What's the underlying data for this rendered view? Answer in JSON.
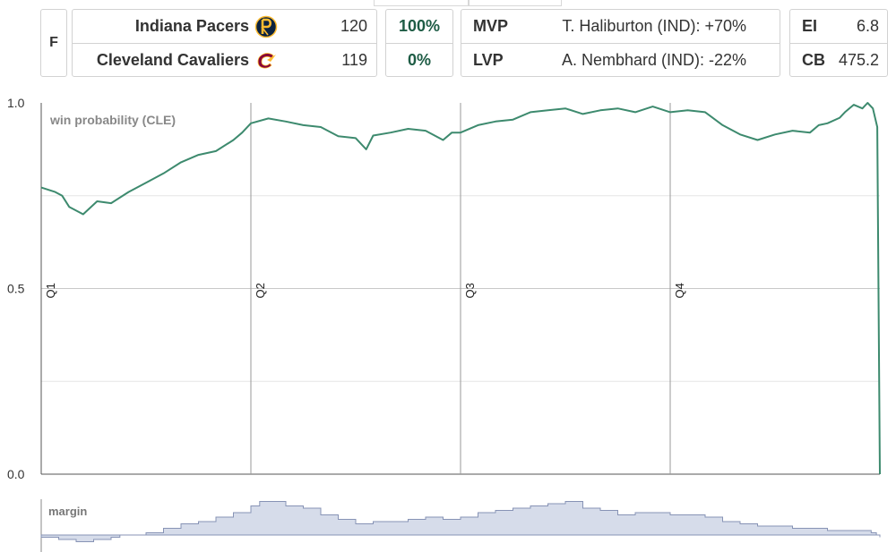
{
  "header": {
    "status": "F",
    "teams": [
      {
        "name": "Indiana Pacers",
        "score": "120",
        "win_pct": "100%",
        "logo_icon": "pacers-logo-icon",
        "logo_color": "#0c2340"
      },
      {
        "name": "Cleveland Cavaliers",
        "score": "119",
        "win_pct": "0%",
        "logo_icon": "cavaliers-logo-icon",
        "logo_color": "#860038"
      }
    ],
    "mvp": {
      "label": "MVP",
      "value": "T. Haliburton (IND): +70%"
    },
    "lvp": {
      "label": "LVP",
      "value": "A. Nembhard (IND): -22%"
    },
    "ei": {
      "label": "EI",
      "value": "6.8"
    },
    "cb": {
      "label": "CB",
      "value": "475.2"
    }
  },
  "chart_data": [
    {
      "type": "line",
      "title": "win probability (CLE)",
      "ylim": [
        0,
        1
      ],
      "y_ticks": [
        0.0,
        0.5,
        1.0
      ],
      "y_tick_labels": [
        "0.0",
        "0.5",
        "1.0"
      ],
      "xlim": [
        0,
        48
      ],
      "x_unit": "game minutes",
      "quarters": [
        {
          "label": "Q1",
          "start": 0
        },
        {
          "label": "Q2",
          "start": 12
        },
        {
          "label": "Q3",
          "start": 24
        },
        {
          "label": "Q4",
          "start": 36
        }
      ],
      "grid": true,
      "color": "#3d8a6e",
      "series": [
        {
          "x": [
            0,
            0.8,
            1.2,
            1.6,
            2.4,
            3.2,
            4,
            5,
            6,
            7,
            8,
            9,
            10,
            11,
            11.5,
            12,
            13,
            14,
            15,
            16,
            17,
            18,
            18.6,
            19,
            20,
            21,
            22,
            23,
            23.5,
            24,
            25,
            26,
            27,
            28,
            29,
            30,
            31,
            32,
            33,
            34,
            35,
            36,
            37,
            38,
            39,
            40,
            41,
            42,
            43,
            44,
            44.5,
            45,
            45.7,
            46,
            46.5,
            47,
            47.3,
            47.6,
            47.85,
            48
          ],
          "y": [
            0.772,
            0.76,
            0.75,
            0.72,
            0.7,
            0.735,
            0.73,
            0.76,
            0.785,
            0.81,
            0.84,
            0.86,
            0.87,
            0.9,
            0.92,
            0.945,
            0.958,
            0.95,
            0.94,
            0.935,
            0.91,
            0.905,
            0.875,
            0.912,
            0.92,
            0.93,
            0.925,
            0.9,
            0.92,
            0.92,
            0.94,
            0.95,
            0.955,
            0.975,
            0.98,
            0.985,
            0.97,
            0.98,
            0.985,
            0.975,
            0.99,
            0.975,
            0.98,
            0.975,
            0.94,
            0.915,
            0.9,
            0.915,
            0.925,
            0.92,
            0.94,
            0.945,
            0.96,
            0.975,
            0.995,
            0.985,
            1.0,
            0.985,
            0.935,
            0.0
          ]
        }
      ]
    },
    {
      "type": "area",
      "title": "margin",
      "xlim": [
        0,
        48
      ],
      "fill_color": "#d6dcea",
      "line_color": "#8793b5",
      "series": [
        {
          "x": [
            0,
            0.5,
            1,
            1.5,
            2,
            2.5,
            3,
            3.5,
            4,
            4.5,
            5,
            6,
            7,
            8,
            9,
            10,
            11,
            12,
            12.5,
            13,
            14,
            15,
            16,
            17,
            18,
            19,
            20,
            21,
            22,
            23,
            24,
            25,
            26,
            27,
            28,
            29,
            30,
            31,
            32,
            33,
            34,
            35,
            36,
            37,
            38,
            39,
            40,
            41,
            42,
            43,
            44,
            45,
            46,
            47,
            47.5,
            47.8,
            48
          ],
          "y": [
            -1,
            -1,
            -2,
            -2,
            -3,
            -3,
            -2,
            -2,
            -1,
            0,
            0,
            1,
            3,
            5,
            6,
            8,
            10,
            13,
            15,
            15,
            13,
            12,
            9,
            7,
            5,
            6,
            6,
            7,
            8,
            7,
            8,
            10,
            11,
            12,
            13,
            14,
            15,
            12,
            11,
            9,
            10,
            10,
            9,
            9,
            8,
            6,
            5,
            4,
            4,
            3,
            3,
            2,
            2,
            2,
            1,
            0,
            -1
          ]
        }
      ]
    }
  ]
}
